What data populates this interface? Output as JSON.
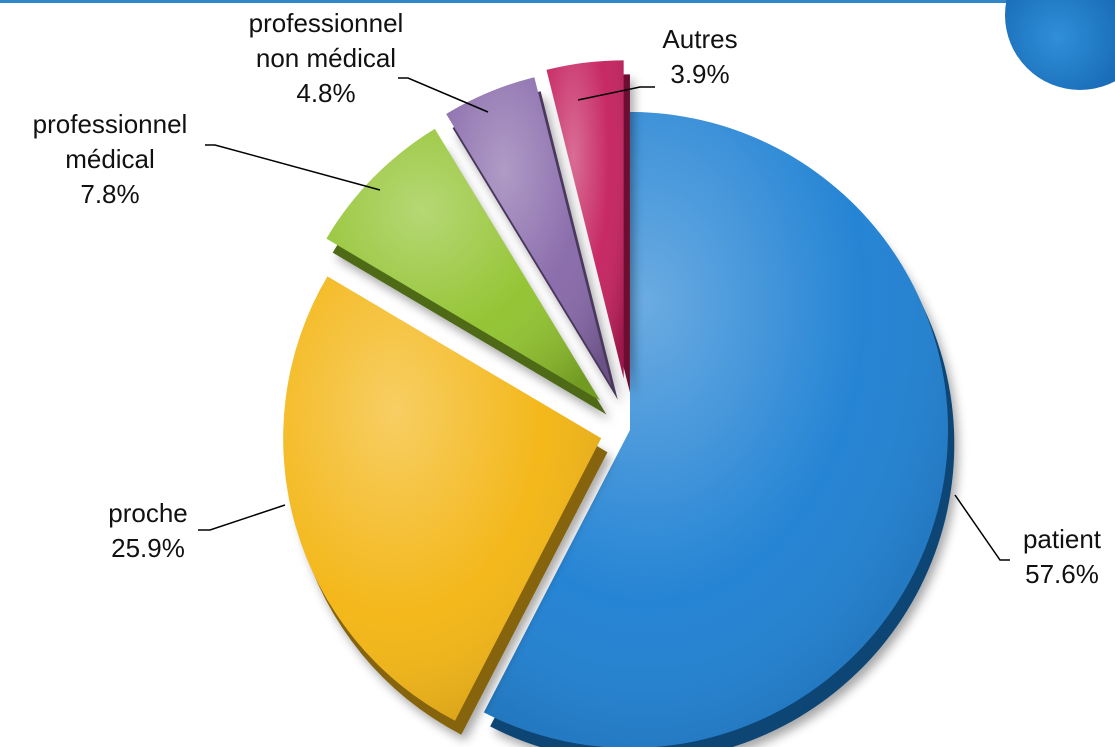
{
  "chart_data": {
    "type": "pie",
    "title": "",
    "colors": {
      "patient": "#1a7ed2",
      "proche": "#f3b40f",
      "professionnel médical": "#8fc22b",
      "professionnel non médical": "#8566a8",
      "Autres": "#c41e5c"
    },
    "slices": [
      {
        "name": "patient",
        "label_lines": [
          "patient"
        ],
        "pct_label": "57.6%",
        "value": 57.6,
        "color": "#1a7ed2"
      },
      {
        "name": "proche",
        "label_lines": [
          "proche"
        ],
        "pct_label": "25.9%",
        "value": 25.9,
        "color": "#f3b40f"
      },
      {
        "name": "professionnel médical",
        "label_lines": [
          "professionnel",
          "médical"
        ],
        "pct_label": "7.8%",
        "value": 7.8,
        "color": "#8fc22b"
      },
      {
        "name": "professionnel non médical",
        "label_lines": [
          "professionnel",
          "non médical"
        ],
        "pct_label": "4.8%",
        "value": 4.8,
        "color": "#8566a8"
      },
      {
        "name": "Autres",
        "label_lines": [
          "Autres"
        ],
        "pct_label": "3.9%",
        "value": 3.9,
        "color": "#c41e5c"
      }
    ]
  }
}
